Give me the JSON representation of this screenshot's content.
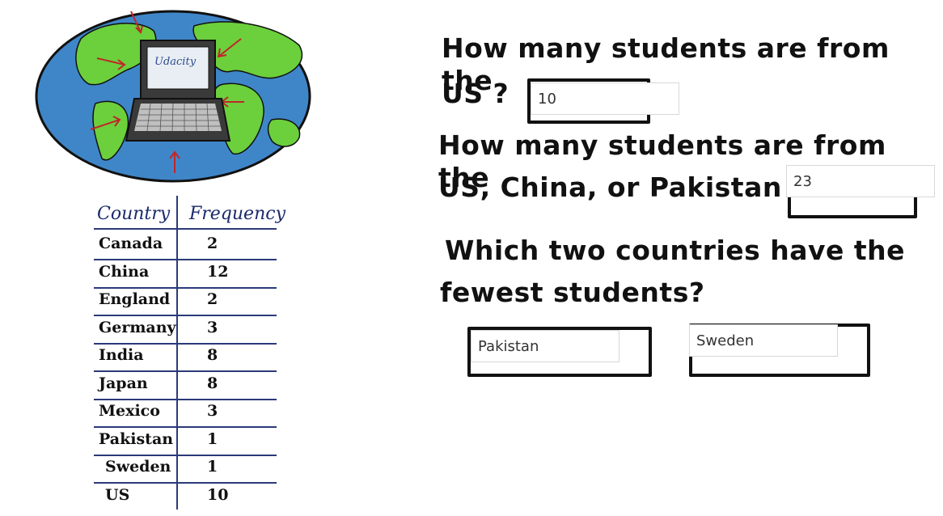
{
  "illustration": {
    "laptop_screen_text": "Udacity"
  },
  "table": {
    "header_country": "Country",
    "header_frequency": "Frequency",
    "rows": [
      {
        "country": "Canada",
        "frequency": "2"
      },
      {
        "country": "China",
        "frequency": "12"
      },
      {
        "country": "England",
        "frequency": "2"
      },
      {
        "country": "Germany",
        "frequency": "3"
      },
      {
        "country": "India",
        "frequency": "8"
      },
      {
        "country": "Japan",
        "frequency": "8"
      },
      {
        "country": "Mexico",
        "frequency": "3"
      },
      {
        "country": "Pakistan",
        "frequency": "1"
      },
      {
        "country": "Sweden",
        "frequency": "1"
      },
      {
        "country": "US",
        "frequency": "10"
      }
    ]
  },
  "questions": {
    "q1_line1": "How many students are from the",
    "q1_line2": "US ?",
    "q1_answer": "10",
    "q2_line1": "How many students are from the",
    "q2_line2": "US, China, or Pakistan ?",
    "q2_answer": "23",
    "q3_line1": "Which two countries have the",
    "q3_line2": "fewest students?",
    "q3_answer_a": "Pakistan",
    "q3_answer_b": "Sweden"
  },
  "colors": {
    "ocean": "#3f86c8",
    "land": "#6ccf3c",
    "table_ink": "#1a2a6c",
    "arrow": "#c0262a"
  }
}
